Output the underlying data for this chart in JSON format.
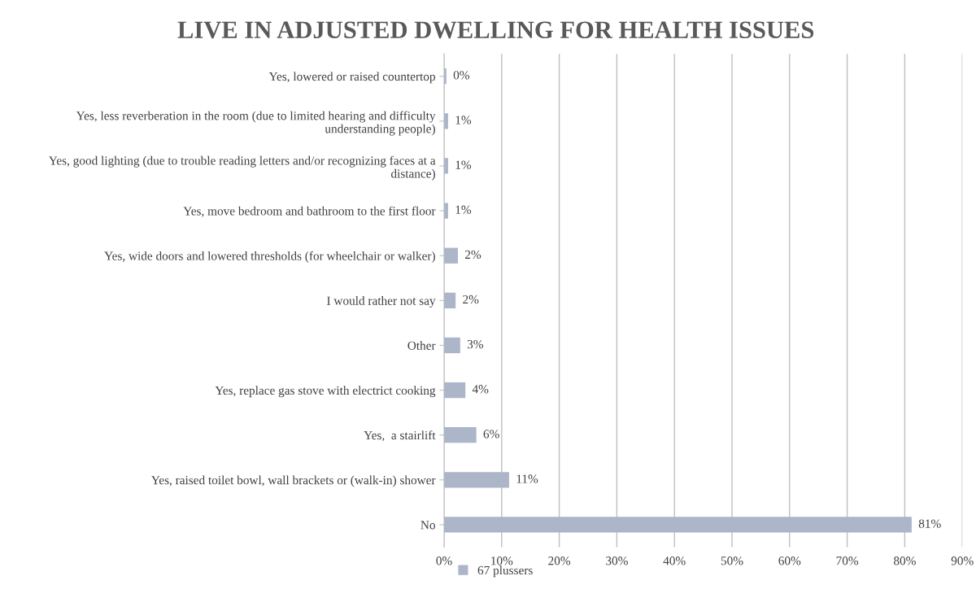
{
  "chart_data": {
    "type": "bar",
    "orientation": "horizontal",
    "title": "LIVE IN ADJUSTED DWELLING FOR HEALTH ISSUES",
    "categories": [
      "Yes, lowered or raised countertop",
      "Yes, less reverberation in the room (due to limited hearing and difficulty\nunderstanding people)",
      "Yes, good lighting (due to trouble reading letters and/or recognizing faces at a\ndistance)",
      "Yes, move bedroom and bathroom to the first floor",
      "Yes, wide doors and lowered thresholds (for wheelchair or walker)",
      "I would rather not say",
      "Other",
      "Yes, replace gas stove with electrict cooking",
      "Yes,  a stairlift",
      "Yes, raised toilet bowl, wall brackets or (walk-in) shower",
      "No"
    ],
    "series": [
      {
        "name": "67 plussers",
        "color": "#adb5c9",
        "values": [
          0.4,
          0.7,
          0.7,
          0.7,
          2.4,
          2.0,
          2.8,
          3.7,
          5.6,
          11.3,
          81.2
        ],
        "value_labels": [
          "0%",
          "1%",
          "1%",
          "1%",
          "2%",
          "2%",
          "3%",
          "4%",
          "6%",
          "11%",
          "81%"
        ]
      }
    ],
    "xlim": [
      0,
      90
    ],
    "xticks": [
      {
        "value": 0,
        "label": "0%"
      },
      {
        "value": 10,
        "label": "10%"
      },
      {
        "value": 20,
        "label": "20%"
      },
      {
        "value": 30,
        "label": "30%"
      },
      {
        "value": 40,
        "label": "40%"
      },
      {
        "value": 50,
        "label": "50%"
      },
      {
        "value": 60,
        "label": "60%"
      },
      {
        "value": 70,
        "label": "70%"
      },
      {
        "value": 80,
        "label": "80%"
      },
      {
        "value": 90,
        "label": "90%"
      }
    ],
    "grid": "x",
    "legend": "bottom"
  }
}
